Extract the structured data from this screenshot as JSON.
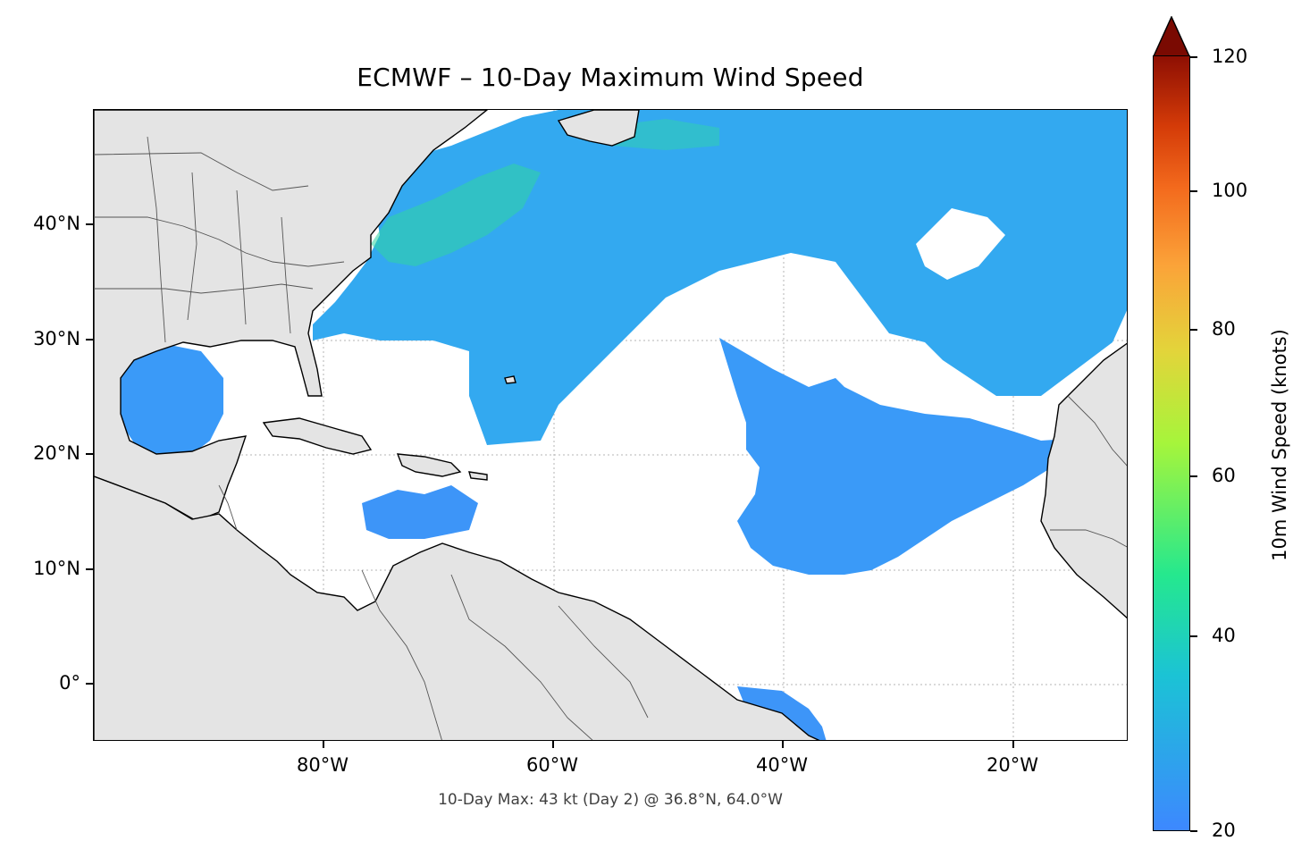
{
  "title": "ECMWF – 10-Day Maximum Wind Speed",
  "annotation": "10-Day Max: 43 kt (Day 2) @ 36.8°N, 64.0°W",
  "map": {
    "projection": "PlateCarree",
    "extent": {
      "lon_min": -100,
      "lon_max": -10,
      "lat_min": -5,
      "lat_max": 50
    },
    "gridlines": true,
    "land_color": "#e4e4e4",
    "coastline_color": "#000000",
    "border_color": "#555555"
  },
  "axes": {
    "lat_ticks": [
      {
        "value": 40,
        "label": "40°N"
      },
      {
        "value": 30,
        "label": "30°N"
      },
      {
        "value": 20,
        "label": "20°N"
      },
      {
        "value": 10,
        "label": "10°N"
      },
      {
        "value": 0,
        "label": "0°"
      }
    ],
    "lon_ticks": [
      {
        "value": -80,
        "label": "80°W"
      },
      {
        "value": -60,
        "label": "60°W"
      },
      {
        "value": -40,
        "label": "40°W"
      },
      {
        "value": -20,
        "label": "20°W"
      }
    ]
  },
  "colorbar": {
    "label": "10m Wind Speed (knots)",
    "min": 20,
    "max": 120,
    "extend": "max",
    "ticks": [
      {
        "value": 20,
        "label": "20"
      },
      {
        "value": 40,
        "label": "40"
      },
      {
        "value": 60,
        "label": "60"
      },
      {
        "value": 80,
        "label": "80"
      },
      {
        "value": 100,
        "label": "100"
      },
      {
        "value": 120,
        "label": "120"
      }
    ],
    "colormap": "turbo",
    "low_color": "#3d88ff",
    "high_color": "#8e0f03"
  },
  "wind_field": {
    "max_speed_kt": 43,
    "max_day": 2,
    "max_location": {
      "lat": 36.8,
      "lon": -64.0
    },
    "typical_speed_kt": 28
  }
}
